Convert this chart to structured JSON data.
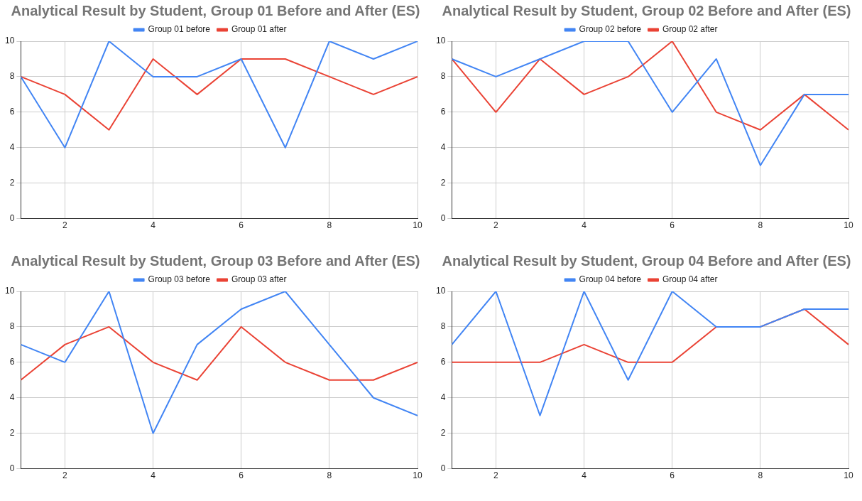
{
  "chart_data": [
    {
      "type": "line",
      "title": "Analytical Result by Student, Group 01 Before and After (ES)",
      "x": [
        1,
        2,
        3,
        4,
        5,
        6,
        7,
        8,
        9,
        10
      ],
      "series": [
        {
          "name": "Group 01 before",
          "color": "#4285f4",
          "values": [
            8,
            4,
            10,
            8,
            8,
            9,
            4,
            10,
            9,
            10
          ]
        },
        {
          "name": "Group 01 after",
          "color": "#ea4335",
          "values": [
            8,
            7,
            5,
            9,
            7,
            9,
            9,
            8,
            7,
            8
          ]
        }
      ],
      "xlim": [
        1,
        10
      ],
      "xticks": [
        2,
        4,
        6,
        8,
        10
      ],
      "ylim": [
        0,
        10
      ],
      "yticks": [
        0,
        2,
        4,
        6,
        8,
        10
      ],
      "grid": true,
      "legend": "top",
      "marker": "none",
      "line_style": "solid"
    },
    {
      "type": "line",
      "title": "Analytical Result by Student, Group 02 Before and After (ES)",
      "x": [
        1,
        2,
        3,
        4,
        5,
        6,
        7,
        8,
        9,
        10
      ],
      "series": [
        {
          "name": "Group 02 before",
          "color": "#4285f4",
          "values": [
            9,
            8,
            9,
            10,
            10,
            6,
            9,
            3,
            7,
            7
          ]
        },
        {
          "name": "Group 02 after",
          "color": "#ea4335",
          "values": [
            9,
            6,
            9,
            7,
            8,
            10,
            6,
            5,
            7,
            5
          ]
        }
      ],
      "xlim": [
        1,
        10
      ],
      "xticks": [
        2,
        4,
        6,
        8,
        10
      ],
      "ylim": [
        0,
        10
      ],
      "yticks": [
        0,
        2,
        4,
        6,
        8,
        10
      ],
      "grid": true,
      "legend": "top",
      "marker": "none",
      "line_style": "solid"
    },
    {
      "type": "line",
      "title": "Analytical Result by Student, Group 03 Before and After (ES)",
      "x": [
        1,
        2,
        3,
        4,
        5,
        6,
        7,
        8,
        9,
        10
      ],
      "series": [
        {
          "name": "Group 03 before",
          "color": "#4285f4",
          "values": [
            7,
            6,
            10,
            2,
            7,
            9,
            10,
            7,
            4,
            3
          ]
        },
        {
          "name": "Group 03 after",
          "color": "#ea4335",
          "values": [
            5,
            7,
            8,
            6,
            5,
            8,
            6,
            5,
            5,
            6
          ]
        }
      ],
      "xlim": [
        1,
        10
      ],
      "xticks": [
        2,
        4,
        6,
        8,
        10
      ],
      "ylim": [
        0,
        10
      ],
      "yticks": [
        0,
        2,
        4,
        6,
        8,
        10
      ],
      "grid": true,
      "legend": "top",
      "marker": "none",
      "line_style": "solid"
    },
    {
      "type": "line",
      "title": "Analytical Result by Student, Group 04 Before and After (ES)",
      "x": [
        1,
        2,
        3,
        4,
        5,
        6,
        7,
        8,
        9,
        10
      ],
      "series": [
        {
          "name": "Group 04 before",
          "color": "#4285f4",
          "values": [
            7,
            10,
            3,
            10,
            5,
            10,
            8,
            8,
            9,
            9
          ]
        },
        {
          "name": "Group 04 after",
          "color": "#ea4335",
          "values": [
            6,
            6,
            6,
            7,
            6,
            6,
            8,
            8,
            9,
            7
          ]
        }
      ],
      "xlim": [
        1,
        10
      ],
      "xticks": [
        2,
        4,
        6,
        8,
        10
      ],
      "ylim": [
        0,
        10
      ],
      "yticks": [
        0,
        2,
        4,
        6,
        8,
        10
      ],
      "grid": true,
      "legend": "top",
      "marker": "none",
      "line_style": "solid"
    }
  ]
}
